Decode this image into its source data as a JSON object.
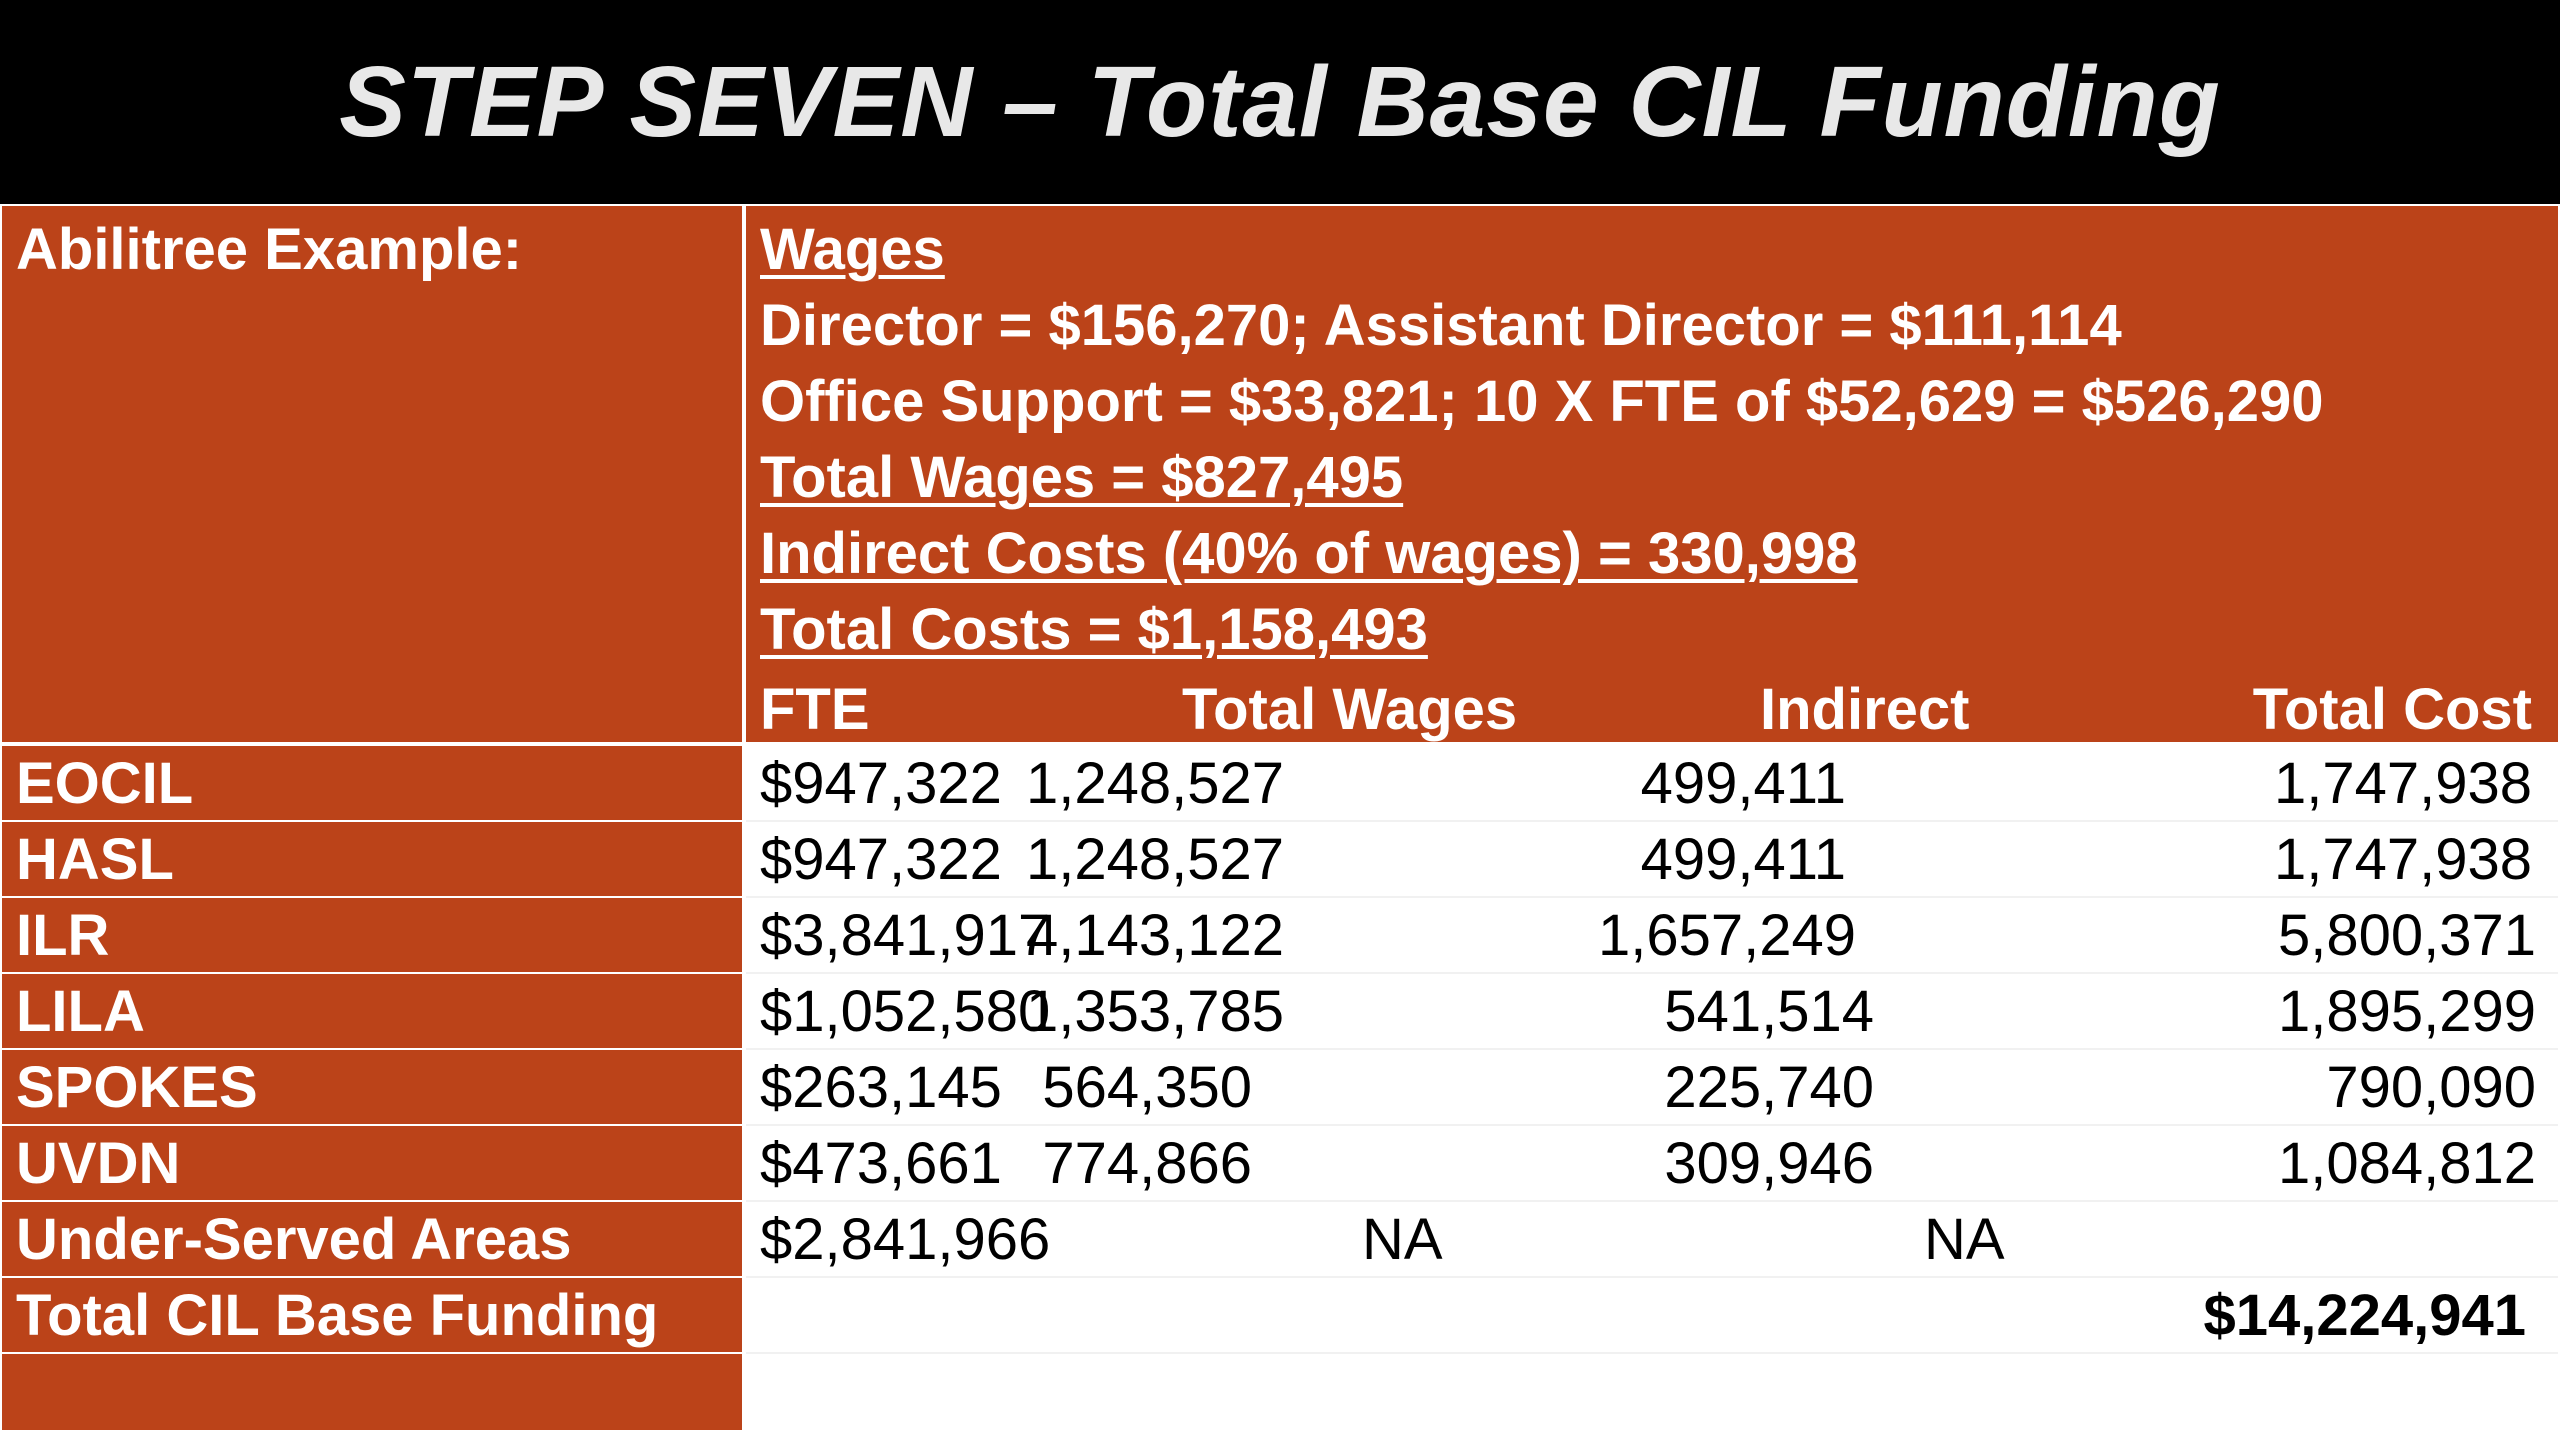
{
  "title": "STEP SEVEN – Total Base CIL Funding",
  "header": {
    "example_label": "Abilitree Example:",
    "wages_heading": "Wages",
    "line1": "Director = $156,270; Assistant Director = $111,114",
    "line2": "Office Support = $33,821; 10 X FTE of $52,629 = $526,290",
    "line3": "Total Wages = $827,495",
    "line4": "Indirect Costs (40% of wages) = 330,998",
    "line5": "Total Costs = $1,158,493"
  },
  "columns": [
    "FTE",
    "Total Wages",
    "Indirect",
    "Total Cost"
  ],
  "rows": [
    {
      "name": "EOCIL",
      "fte": "$947,322",
      "total_wages": "1,248,527",
      "indirect": "499,411",
      "total_cost": "1,747,938"
    },
    {
      "name": "HASL",
      "fte": "$947,322",
      "total_wages": "1,248,527",
      "indirect": "499,411",
      "total_cost": "1,747,938"
    },
    {
      "name": "ILR",
      "fte": "$3,841,917",
      "total_wages": "4,143,122",
      "indirect": "1,657,249",
      "total_cost": "5,800,371"
    },
    {
      "name": "LILA",
      "fte": "$1,052,580",
      "total_wages": "1,353,785",
      "indirect": "541,514",
      "total_cost": "1,895,299"
    },
    {
      "name": "SPOKES",
      "fte": "$263,145",
      "total_wages": "564,350",
      "indirect": "225,740",
      "total_cost": "790,090"
    },
    {
      "name": "UVDN",
      "fte": "$473,661",
      "total_wages": "774,866",
      "indirect": "309,946",
      "total_cost": "1,084,812"
    },
    {
      "name": "Under-Served Areas",
      "fte": "$2,841,966",
      "total_wages": "NA",
      "indirect": "NA",
      "total_cost": ""
    },
    {
      "name": "Total CIL Base Funding",
      "fte": "",
      "total_wages": "",
      "indirect": "",
      "total_cost": "$14,224,941"
    }
  ]
}
